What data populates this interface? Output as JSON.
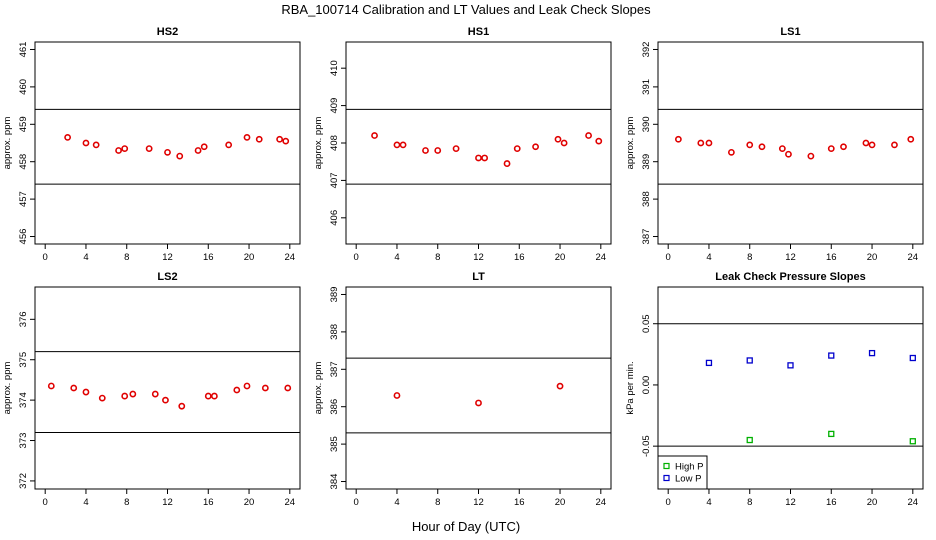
{
  "title": "RBA_100714  Calibration and LT Values and Leak Check Slopes",
  "xlabel": "Hour of Day (UTC)",
  "chart_data": [
    {
      "type": "scatter",
      "title": "HS2",
      "ylabel": "approx. ppm",
      "xlim": [
        -1,
        25
      ],
      "ylim": [
        455.8,
        461.2
      ],
      "xticks": [
        "0",
        "4",
        "8",
        "12",
        "16",
        "20",
        "24"
      ],
      "yticks": [
        "456",
        "457",
        "458",
        "459",
        "460",
        "461"
      ],
      "hlines": [
        459.4,
        457.4
      ],
      "series": [
        {
          "color": "#e00000",
          "marker": "circle",
          "x": [
            2.2,
            4.0,
            5.0,
            7.2,
            7.8,
            10.2,
            12.0,
            13.2,
            15.0,
            15.6,
            18.0,
            19.8,
            21.0,
            23.0,
            23.6
          ],
          "y": [
            458.65,
            458.5,
            458.45,
            458.3,
            458.35,
            458.35,
            458.25,
            458.15,
            458.3,
            458.4,
            458.45,
            458.65,
            458.6,
            458.6,
            458.55
          ]
        }
      ]
    },
    {
      "type": "scatter",
      "title": "HS1",
      "ylabel": "approx. ppm",
      "xlim": [
        -1,
        25
      ],
      "ylim": [
        405.3,
        410.7
      ],
      "xticks": [
        "0",
        "4",
        "8",
        "12",
        "16",
        "20",
        "24"
      ],
      "yticks": [
        "406",
        "407",
        "408",
        "409",
        "410"
      ],
      "hlines": [
        408.9,
        406.9
      ],
      "series": [
        {
          "color": "#e00000",
          "marker": "circle",
          "x": [
            1.8,
            4.0,
            4.6,
            6.8,
            8.0,
            9.8,
            12.0,
            12.6,
            14.8,
            15.8,
            17.6,
            19.8,
            20.4,
            22.8,
            23.8
          ],
          "y": [
            408.2,
            407.95,
            407.95,
            407.8,
            407.8,
            407.85,
            407.6,
            407.6,
            407.45,
            407.85,
            407.9,
            408.1,
            408.0,
            408.2,
            408.05
          ]
        }
      ]
    },
    {
      "type": "scatter",
      "title": "LS1",
      "ylabel": "approx. ppm",
      "xlim": [
        -1,
        25
      ],
      "ylim": [
        386.8,
        392.2
      ],
      "xticks": [
        "0",
        "4",
        "8",
        "12",
        "16",
        "20",
        "24"
      ],
      "yticks": [
        "387",
        "388",
        "389",
        "390",
        "391",
        "392"
      ],
      "hlines": [
        390.4,
        388.4
      ],
      "series": [
        {
          "color": "#e00000",
          "marker": "circle",
          "x": [
            1.0,
            3.2,
            4.0,
            6.2,
            8.0,
            9.2,
            11.2,
            11.8,
            14.0,
            16.0,
            17.2,
            19.4,
            20.0,
            22.2,
            23.8
          ],
          "y": [
            389.6,
            389.5,
            389.5,
            389.25,
            389.45,
            389.4,
            389.35,
            389.2,
            389.15,
            389.35,
            389.4,
            389.5,
            389.45,
            389.45,
            389.6
          ]
        }
      ]
    },
    {
      "type": "scatter",
      "title": "LS2",
      "ylabel": "approx. ppm",
      "xlim": [
        -1,
        25
      ],
      "ylim": [
        371.8,
        376.8
      ],
      "xticks": [
        "0",
        "4",
        "8",
        "12",
        "16",
        "20",
        "24"
      ],
      "yticks": [
        "372",
        "373",
        "374",
        "375",
        "376"
      ],
      "hlines": [
        375.2,
        373.2
      ],
      "series": [
        {
          "color": "#e00000",
          "marker": "circle",
          "x": [
            0.6,
            2.8,
            4.0,
            5.6,
            7.8,
            8.6,
            10.8,
            11.8,
            13.4,
            16.0,
            16.6,
            18.8,
            19.8,
            21.6,
            23.8
          ],
          "y": [
            374.35,
            374.3,
            374.2,
            374.05,
            374.1,
            374.15,
            374.15,
            374.0,
            373.85,
            374.1,
            374.1,
            374.25,
            374.35,
            374.3,
            374.3
          ]
        }
      ]
    },
    {
      "type": "scatter",
      "title": "LT",
      "ylabel": "approx. ppm",
      "xlim": [
        -1,
        25
      ],
      "ylim": [
        383.8,
        389.2
      ],
      "xticks": [
        "0",
        "4",
        "8",
        "12",
        "16",
        "20",
        "24"
      ],
      "yticks": [
        "384",
        "385",
        "386",
        "387",
        "388",
        "389"
      ],
      "hlines": [
        387.3,
        385.3
      ],
      "series": [
        {
          "color": "#e00000",
          "marker": "circle",
          "x": [
            4.0,
            12.0,
            20.0
          ],
          "y": [
            386.3,
            386.1,
            386.55
          ]
        }
      ]
    },
    {
      "type": "scatter",
      "title": "Leak Check Pressure Slopes",
      "ylabel": "kPa per min.",
      "xlim": [
        -1,
        25
      ],
      "ylim": [
        -0.085,
        0.08
      ],
      "xticks": [
        "0",
        "4",
        "8",
        "12",
        "16",
        "20",
        "24"
      ],
      "yticks": [
        "-0.05",
        "0.00",
        "0.05"
      ],
      "hlines": [
        0.05,
        -0.05
      ],
      "legend": "bottom-left",
      "series": [
        {
          "name": "High P",
          "color": "#00b000",
          "marker": "square",
          "x": [
            8.0,
            16.0,
            24.0
          ],
          "y": [
            -0.045,
            -0.04,
            -0.046
          ]
        },
        {
          "name": "Low P",
          "color": "#0000cc",
          "marker": "square",
          "x": [
            4.0,
            8.0,
            12.0,
            16.0,
            20.0,
            24.0
          ],
          "y": [
            0.018,
            0.02,
            0.016,
            0.024,
            0.026,
            0.022
          ]
        }
      ]
    }
  ]
}
